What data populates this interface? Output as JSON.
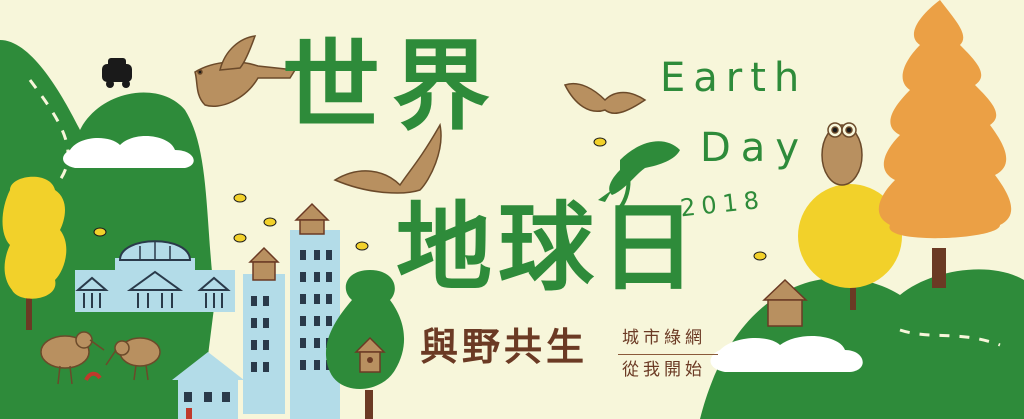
{
  "title": {
    "line1": "世界",
    "line2": "地球日"
  },
  "subtitle": "與野共生",
  "tagline": {
    "line1": "城市綠網",
    "line2": "從我開始"
  },
  "english": {
    "line1": "Earth",
    "line2": "Day",
    "year": "2018"
  },
  "colors": {
    "background": "#f7f6da",
    "green": "#2e8b3a",
    "brown": "#6b3a24",
    "animal": "#b89060",
    "yellow": "#f2d12a",
    "orange": "#eba045",
    "building": "#b3dce8"
  }
}
